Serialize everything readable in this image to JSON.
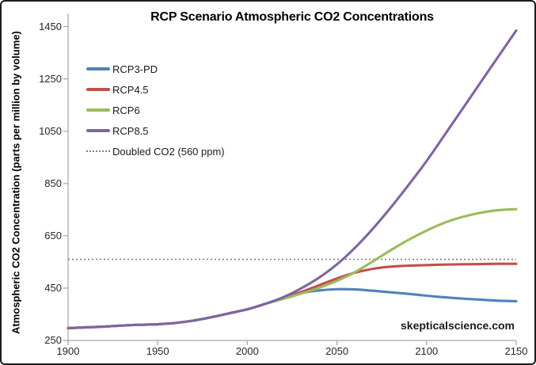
{
  "frame": {
    "watermark": "skepticalscience.com"
  },
  "chart_data": {
    "type": "line",
    "title": "RCP Scenario Atmospheric CO2 Concentrations",
    "xlabel": "",
    "ylabel": "Atmospheric CO2 Concentration (parts per million by volume)",
    "xlim": [
      1900,
      2150
    ],
    "ylim": [
      250,
      1500
    ],
    "x_ticks": [
      1900,
      1950,
      2000,
      2050,
      2100,
      2150
    ],
    "y_ticks": [
      250,
      450,
      650,
      850,
      1050,
      1250,
      1450
    ],
    "grid": false,
    "legend_position": "upper-left-inside",
    "axis_color": "#a6a6a6",
    "x": [
      1900,
      1910,
      1920,
      1930,
      1940,
      1950,
      1960,
      1970,
      1980,
      1990,
      2000,
      2010,
      2020,
      2030,
      2040,
      2050,
      2060,
      2070,
      2080,
      2090,
      2100,
      2110,
      2120,
      2130,
      2140,
      2150
    ],
    "series": [
      {
        "name": "RCP3-PD",
        "color": "#4F81BD",
        "values": [
          297,
          300,
          303,
          307,
          310,
          312,
          317,
          326,
          339,
          354,
          369,
          390,
          412,
          431,
          441,
          446,
          445,
          440,
          434,
          428,
          421,
          415,
          410,
          406,
          402,
          400
        ]
      },
      {
        "name": "RCP4.5",
        "color": "#C0504D",
        "values": [
          297,
          300,
          303,
          307,
          310,
          312,
          317,
          326,
          339,
          354,
          369,
          390,
          411,
          435,
          461,
          487,
          509,
          524,
          532,
          536,
          538,
          540,
          541,
          542,
          543,
          543
        ]
      },
      {
        "name": "RCP6",
        "color": "#9BBB59",
        "values": [
          297,
          300,
          303,
          307,
          310,
          312,
          317,
          326,
          339,
          354,
          369,
          390,
          409,
          429,
          451,
          478,
          511,
          552,
          595,
          635,
          670,
          700,
          722,
          738,
          748,
          752
        ]
      },
      {
        "name": "RCP8.5",
        "color": "#8064A2",
        "values": [
          297,
          300,
          303,
          307,
          310,
          312,
          317,
          326,
          339,
          354,
          369,
          390,
          415,
          449,
          490,
          541,
          604,
          677,
          758,
          845,
          936,
          1035,
          1135,
          1235,
          1335,
          1435
        ]
      }
    ],
    "reference_line": {
      "label": "Doubled CO2 (560 ppm)",
      "value": 560,
      "color": "#7f7f7f",
      "style": "dotted"
    }
  }
}
